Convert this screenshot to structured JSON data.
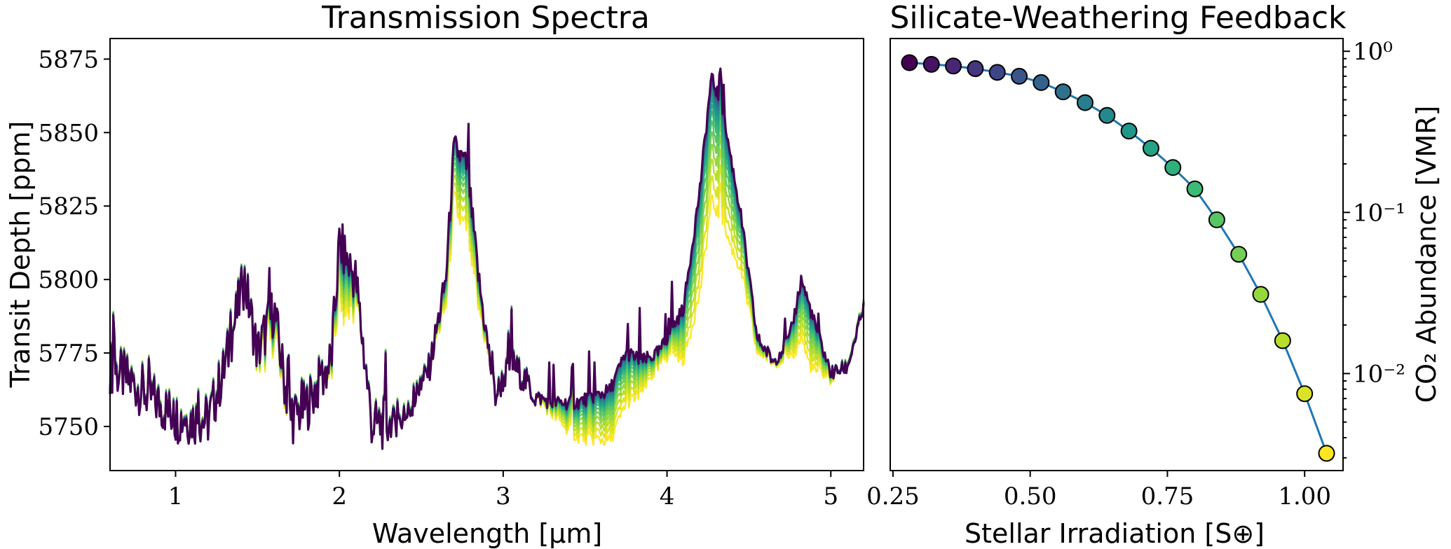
{
  "chart_data": [
    {
      "type": "line",
      "title": "Transmission Spectra",
      "xlabel": "Wavelength [µm]",
      "ylabel": "Transit Depth [ppm]",
      "xlim": [
        0.6,
        5.2
      ],
      "ylim": [
        5735,
        5882
      ],
      "xticks": [
        1,
        2,
        3,
        4,
        5
      ],
      "yticks": [
        5750,
        5775,
        5800,
        5825,
        5850,
        5875
      ],
      "colormap": "viridis",
      "baseline": [
        [
          0.6,
          5770
        ],
        [
          0.8,
          5762
        ],
        [
          1.0,
          5753
        ],
        [
          1.2,
          5752
        ],
        [
          1.3,
          5770
        ],
        [
          1.42,
          5800
        ],
        [
          1.5,
          5775
        ],
        [
          1.6,
          5790
        ],
        [
          1.7,
          5752
        ],
        [
          1.8,
          5757
        ],
        [
          1.95,
          5772
        ],
        [
          2.0,
          5812
        ],
        [
          2.1,
          5800
        ],
        [
          2.2,
          5750
        ],
        [
          2.4,
          5752
        ],
        [
          2.55,
          5770
        ],
        [
          2.65,
          5800
        ],
        [
          2.7,
          5845
        ],
        [
          2.78,
          5838
        ],
        [
          2.85,
          5800
        ],
        [
          2.95,
          5760
        ],
        [
          3.05,
          5772
        ],
        [
          3.2,
          5760
        ],
        [
          3.3,
          5758
        ],
        [
          3.45,
          5758
        ],
        [
          3.55,
          5760
        ],
        [
          3.65,
          5762
        ],
        [
          3.75,
          5775
        ],
        [
          3.85,
          5772
        ],
        [
          3.95,
          5775
        ],
        [
          4.1,
          5790
        ],
        [
          4.2,
          5830
        ],
        [
          4.27,
          5868
        ],
        [
          4.33,
          5860
        ],
        [
          4.45,
          5822
        ],
        [
          4.55,
          5780
        ],
        [
          4.65,
          5772
        ],
        [
          4.75,
          5780
        ],
        [
          4.82,
          5800
        ],
        [
          4.9,
          5785
        ],
        [
          5.0,
          5768
        ],
        [
          5.1,
          5770
        ],
        [
          5.2,
          5790
        ]
      ],
      "series": [
        {
          "name": "S=0.28",
          "co2": 0.85
        },
        {
          "name": "S=0.32",
          "co2": 0.83
        },
        {
          "name": "S=0.36",
          "co2": 0.81
        },
        {
          "name": "S=0.40",
          "co2": 0.78
        },
        {
          "name": "S=0.44",
          "co2": 0.74
        },
        {
          "name": "S=0.48",
          "co2": 0.7
        },
        {
          "name": "S=0.52",
          "co2": 0.64
        },
        {
          "name": "S=0.56",
          "co2": 0.56
        },
        {
          "name": "S=0.60",
          "co2": 0.48
        },
        {
          "name": "S=0.64",
          "co2": 0.4
        },
        {
          "name": "S=0.68",
          "co2": 0.32
        },
        {
          "name": "S=0.72",
          "co2": 0.25
        },
        {
          "name": "S=0.76",
          "co2": 0.19
        },
        {
          "name": "S=0.80",
          "co2": 0.14
        },
        {
          "name": "S=0.84",
          "co2": 0.09
        },
        {
          "name": "S=0.88",
          "co2": 0.055
        },
        {
          "name": "S=0.92",
          "co2": 0.031
        },
        {
          "name": "S=0.96",
          "co2": 0.016
        },
        {
          "name": "S=1.00",
          "co2": 0.0075
        },
        {
          "name": "S=1.04",
          "co2": 0.0032
        }
      ]
    },
    {
      "type": "scatter",
      "title": "Silicate-Weathering Feedback",
      "xlabel": "Stellar Irradiation [S⊕]",
      "ylabel": "CO₂ Abundance [VMR]",
      "yscale": "log",
      "xlim": [
        0.245,
        1.07
      ],
      "ylim": [
        0.0025,
        1.2
      ],
      "xticks": [
        "0.25",
        "0.50",
        "0.75",
        "1.00"
      ],
      "xtick_values": [
        0.25,
        0.5,
        0.75,
        1.0
      ],
      "yticks": [
        "10⁰",
        "10⁻¹",
        "10⁻²"
      ],
      "ytick_values": [
        1,
        0.1,
        0.01
      ],
      "x": [
        0.28,
        0.32,
        0.36,
        0.4,
        0.44,
        0.48,
        0.52,
        0.56,
        0.6,
        0.64,
        0.68,
        0.72,
        0.76,
        0.8,
        0.84,
        0.88,
        0.92,
        0.96,
        1.0,
        1.04
      ],
      "y": [
        0.85,
        0.83,
        0.81,
        0.78,
        0.74,
        0.7,
        0.64,
        0.56,
        0.48,
        0.4,
        0.32,
        0.25,
        0.19,
        0.14,
        0.09,
        0.055,
        0.031,
        0.016,
        0.0075,
        0.0032
      ],
      "line_color": "#1f77b4",
      "colormap": "viridis"
    }
  ]
}
